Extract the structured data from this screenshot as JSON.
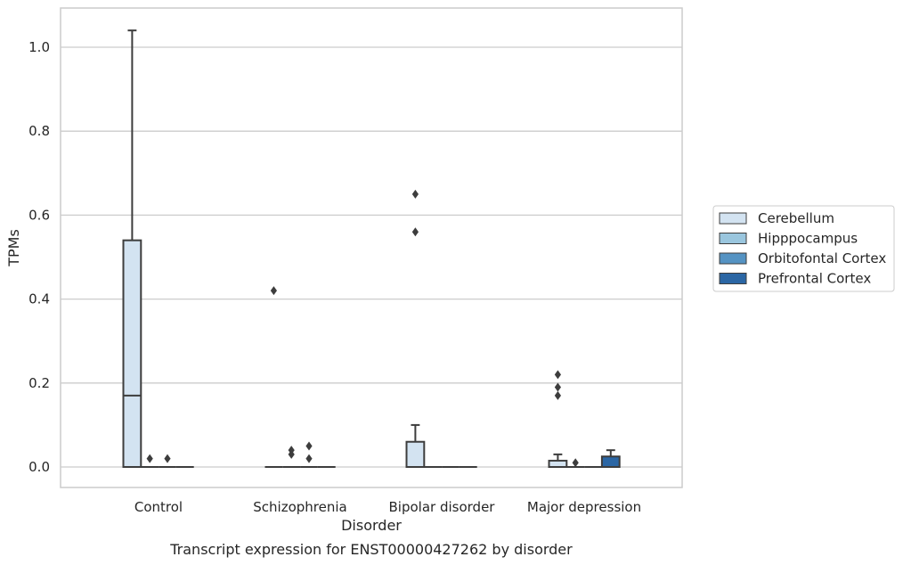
{
  "chart_data": {
    "type": "box",
    "caption": "Transcript expression for ENST00000427262 by disorder",
    "xlabel": "Disorder",
    "ylabel": "TPMs",
    "ylim": [
      -0.05,
      1.09
    ],
    "yticks": [
      "0.0",
      "0.2",
      "0.4",
      "0.6",
      "0.8",
      "1.0"
    ],
    "grid": "horizontal",
    "legend_position": "right",
    "categories": [
      "Control",
      "Schizophrenia",
      "Bipolar disorder",
      "Major depression"
    ],
    "series": [
      {
        "name": "Cerebellum",
        "color": "#d3e3f1",
        "boxes": [
          {
            "q1": 0.0,
            "median": 0.17,
            "q3": 0.54,
            "whisker_low": 0.0,
            "whisker_high": 1.04,
            "outliers": []
          },
          {
            "q1": 0.0,
            "median": 0.0,
            "q3": 0.0,
            "whisker_low": 0.0,
            "whisker_high": 0.0,
            "outliers": [
              0.42
            ]
          },
          {
            "q1": 0.0,
            "median": 0.0,
            "q3": 0.06,
            "whisker_low": 0.0,
            "whisker_high": 0.1,
            "outliers": [
              0.56,
              0.65
            ]
          },
          {
            "q1": 0.0,
            "median": 0.0,
            "q3": 0.015,
            "whisker_low": 0.0,
            "whisker_high": 0.03,
            "outliers": [
              0.17,
              0.19,
              0.22
            ]
          }
        ]
      },
      {
        "name": "Hipppocampus",
        "color": "#9ac6de",
        "boxes": [
          {
            "q1": 0.0,
            "median": 0.0,
            "q3": 0.0,
            "whisker_low": 0.0,
            "whisker_high": 0.0,
            "outliers": [
              0.02
            ]
          },
          {
            "q1": 0.0,
            "median": 0.0,
            "q3": 0.0,
            "whisker_low": 0.0,
            "whisker_high": 0.0,
            "outliers": [
              0.03,
              0.04
            ]
          },
          {
            "q1": 0.0,
            "median": 0.0,
            "q3": 0.0,
            "whisker_low": 0.0,
            "whisker_high": 0.0,
            "outliers": []
          },
          {
            "q1": 0.0,
            "median": 0.0,
            "q3": 0.0,
            "whisker_low": 0.0,
            "whisker_high": 0.0,
            "outliers": [
              0.01
            ]
          }
        ]
      },
      {
        "name": "Orbitofontal Cortex",
        "color": "#5593c3",
        "boxes": [
          {
            "q1": 0.0,
            "median": 0.0,
            "q3": 0.0,
            "whisker_low": 0.0,
            "whisker_high": 0.0,
            "outliers": [
              0.02
            ]
          },
          {
            "q1": 0.0,
            "median": 0.0,
            "q3": 0.0,
            "whisker_low": 0.0,
            "whisker_high": 0.0,
            "outliers": [
              0.02,
              0.05
            ]
          },
          {
            "q1": 0.0,
            "median": 0.0,
            "q3": 0.0,
            "whisker_low": 0.0,
            "whisker_high": 0.0,
            "outliers": []
          },
          {
            "q1": 0.0,
            "median": 0.0,
            "q3": 0.0,
            "whisker_low": 0.0,
            "whisker_high": 0.0,
            "outliers": []
          }
        ]
      },
      {
        "name": "Prefrontal Cortex",
        "color": "#2b66a4",
        "boxes": [
          {
            "q1": 0.0,
            "median": 0.0,
            "q3": 0.0,
            "whisker_low": 0.0,
            "whisker_high": 0.0,
            "outliers": []
          },
          {
            "q1": 0.0,
            "median": 0.0,
            "q3": 0.0,
            "whisker_low": 0.0,
            "whisker_high": 0.0,
            "outliers": []
          },
          {
            "q1": 0.0,
            "median": 0.0,
            "q3": 0.0,
            "whisker_low": 0.0,
            "whisker_high": 0.0,
            "outliers": []
          },
          {
            "q1": 0.0,
            "median": 0.0,
            "q3": 0.025,
            "whisker_low": 0.0,
            "whisker_high": 0.04,
            "outliers": []
          }
        ]
      }
    ]
  },
  "colors": {
    "edge": "#3d3d3d",
    "grid": "#cccccc",
    "frame": "#cccccc"
  }
}
